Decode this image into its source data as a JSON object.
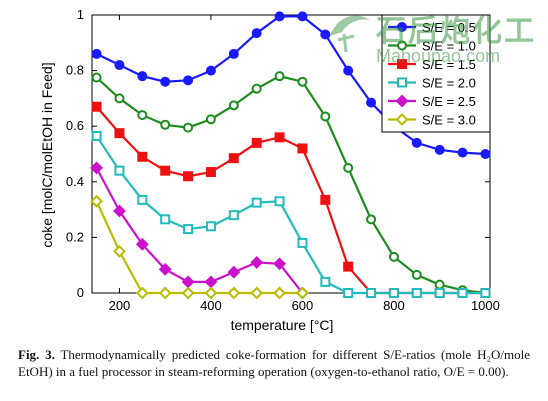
{
  "chart_data": {
    "type": "line",
    "xlabel": "temperature [°C]",
    "ylabel": "coke [molC/molEtOH in Feed]",
    "xlim": [
      140,
      1010
    ],
    "ylim": [
      0,
      1
    ],
    "xticks": [
      200,
      400,
      600,
      800,
      1000
    ],
    "yticks": [
      0,
      0.2,
      0.4,
      0.6,
      0.8,
      1
    ],
    "grid": false,
    "legend_position": "top-right",
    "x": [
      150,
      200,
      250,
      300,
      350,
      400,
      450,
      500,
      550,
      600,
      650,
      700,
      750,
      800,
      850,
      900,
      950,
      1000
    ],
    "series": [
      {
        "name": "S/E = 0.5",
        "color": "#1a1aff",
        "marker": "circle",
        "values": [
          0.86,
          0.82,
          0.78,
          0.76,
          0.765,
          0.8,
          0.86,
          0.935,
          0.995,
          0.995,
          0.93,
          0.8,
          0.685,
          0.6,
          0.54,
          0.515,
          0.505,
          0.5
        ]
      },
      {
        "name": "S/E = 1.0",
        "color": "#1e8c1e",
        "marker": "circle-open",
        "values": [
          0.775,
          0.7,
          0.64,
          0.605,
          0.595,
          0.625,
          0.675,
          0.735,
          0.78,
          0.76,
          0.635,
          0.45,
          0.265,
          0.13,
          0.065,
          0.03,
          0.01,
          0.0
        ]
      },
      {
        "name": "S/E = 1.5",
        "color": "#ee1111",
        "marker": "square",
        "values": [
          0.67,
          0.575,
          0.49,
          0.44,
          0.42,
          0.435,
          0.485,
          0.54,
          0.56,
          0.52,
          0.335,
          0.095,
          0.0,
          0.0,
          0.0,
          0.0,
          0.0,
          0.0
        ]
      },
      {
        "name": "S/E = 2.0",
        "color": "#22bbbb",
        "marker": "square-open",
        "values": [
          0.565,
          0.44,
          0.335,
          0.265,
          0.23,
          0.24,
          0.28,
          0.325,
          0.33,
          0.18,
          0.04,
          0.0,
          0.0,
          0.0,
          0.0,
          0.0,
          0.0,
          0.0
        ]
      },
      {
        "name": "S/E = 2.5",
        "color": "#cc11cc",
        "marker": "diamond",
        "values": [
          0.45,
          0.295,
          0.175,
          0.085,
          0.04,
          0.04,
          0.075,
          0.11,
          0.105,
          0.0,
          null,
          null,
          null,
          null,
          null,
          null,
          null,
          null
        ]
      },
      {
        "name": "S/E = 3.0",
        "color": "#bbbb00",
        "marker": "diamond-open",
        "values": [
          0.33,
          0.15,
          0.0,
          0.0,
          0.0,
          0.0,
          0.0,
          0.0,
          0.0,
          0.0,
          null,
          null,
          null,
          null,
          null,
          null,
          null,
          null
        ]
      }
    ]
  },
  "watermark": {
    "cn_text": "石后炮化工",
    "url": "Mahoupao.com"
  },
  "caption": {
    "label": "Fig. 3.",
    "text": "Thermodynamically predicted coke-formation for different S/E-ratios (mole H₂O/mole EtOH) in a fuel processor in steam-reforming operation (oxygen-to-ethanol ratio, O/E = 0.00)."
  }
}
